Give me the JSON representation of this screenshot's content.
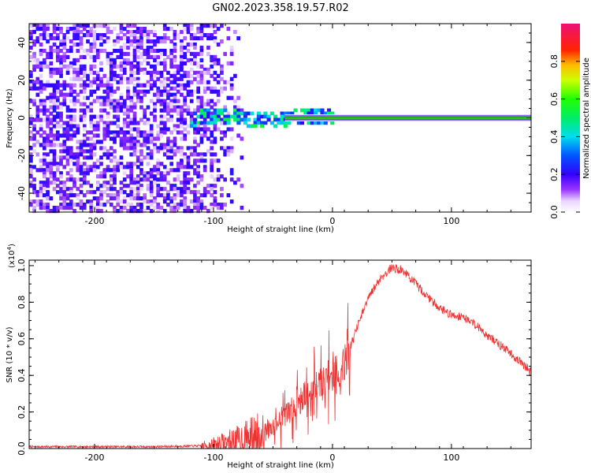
{
  "title": "GN02.2023.358.19.57.R02",
  "chart_data": [
    {
      "type": "heatmap",
      "name": "spectrogram",
      "xlabel": "Height of straight line (km)",
      "ylabel": "Frequency (Hz)",
      "xlim": [
        -255,
        167
      ],
      "ylim": [
        -50,
        50
      ],
      "xticks": [
        "-200",
        "-100",
        "0",
        "100"
      ],
      "xtick_values": [
        -200,
        -100,
        0,
        100
      ],
      "yticks": [
        "40",
        "20",
        "0",
        "-20",
        "-40"
      ],
      "ytick_values": [
        40,
        20,
        0,
        -20,
        -40
      ],
      "colorbar": {
        "label": "Normalized spectral amplitude",
        "ticks": [
          "0.0",
          "0.2",
          "0.4",
          "0.6",
          "0.8"
        ],
        "tick_values": [
          0.0,
          0.2,
          0.4,
          0.6,
          0.8
        ],
        "range": [
          0,
          1
        ]
      },
      "features": {
        "noise_region_x": [
          -255,
          -75
        ],
        "carrier_line_x": [
          -40,
          167
        ],
        "carrier_frequency": 0
      }
    },
    {
      "type": "line",
      "name": "snr",
      "xlabel": "Height of straight line (km)",
      "ylabel": "SNR (10 * v/v)",
      "multiplier": "(x10",
      "multiplier_exp": "4",
      "multiplier_close": ")",
      "xlim": [
        -255,
        167
      ],
      "ylim": [
        0,
        1.03
      ],
      "xticks": [
        "-200",
        "-100",
        "0",
        "100"
      ],
      "xtick_values": [
        -200,
        -100,
        0,
        100
      ],
      "yticks": [
        "0.0",
        "0.2",
        "0.4",
        "0.6",
        "0.8",
        "1.0"
      ],
      "ytick_values": [
        0.0,
        0.2,
        0.4,
        0.6,
        0.8,
        1.0
      ],
      "color": "#ee3333",
      "series": [
        {
          "name": "SNR",
          "x": [
            -255,
            -200,
            -150,
            -110,
            -100,
            -80,
            -60,
            -50,
            -40,
            -30,
            -20,
            -10,
            0,
            10,
            20,
            30,
            40,
            50,
            60,
            70,
            80,
            90,
            100,
            110,
            120,
            130,
            140,
            150,
            160,
            167
          ],
          "values": [
            0.01,
            0.01,
            0.01,
            0.015,
            0.02,
            0.04,
            0.08,
            0.12,
            0.18,
            0.24,
            0.3,
            0.36,
            0.4,
            0.46,
            0.65,
            0.82,
            0.93,
            0.99,
            0.97,
            0.9,
            0.83,
            0.77,
            0.73,
            0.72,
            0.68,
            0.62,
            0.57,
            0.52,
            0.46,
            0.42
          ]
        }
      ]
    }
  ]
}
